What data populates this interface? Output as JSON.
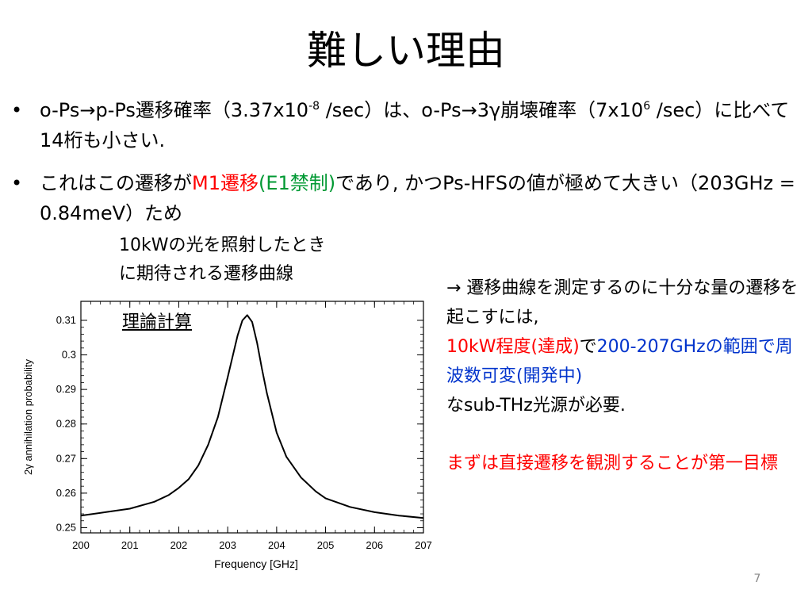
{
  "title": "難しい理由",
  "bullets": [
    {
      "t1": "o-Ps→p-Ps遷移確率（3.37x10",
      "sup1": "-8",
      "t2": " /sec）は、o-Ps→3γ崩壊確率（7x10",
      "sup2": "6",
      "t3": " /sec）に比べて14桁も小さい."
    },
    {
      "t1": "これはこの遷移が",
      "red": "M1遷移",
      "green": "(E1禁制)",
      "t2": "であり, かつPs-HFSの値が極めて大きい（203GHz = 0.84meV）ため"
    }
  ],
  "caption": [
    "10kWの光を照射したとき",
    "に期待される遷移曲線"
  ],
  "theory_label": "理論計算",
  "right_text": {
    "l1": "→ 遷移曲線を測定するのに十分な量の遷移を起こすには,",
    "red1": "10kW程度(達成)",
    "de": "で",
    "blue1": "200-207GHzの範囲で周波数可変(開発中)",
    "l3": "なsub-THz光源が必要.",
    "goal": "まずは直接遷移を観測することが第一目標"
  },
  "page_number": "7",
  "chart_data": {
    "type": "line",
    "xlabel": "Frequency [GHz]",
    "ylabel": "2γ annihilation probability",
    "xlim": [
      200,
      207
    ],
    "ylim": [
      0.2485,
      0.3155
    ],
    "xticks": [
      200,
      201,
      202,
      203,
      204,
      205,
      206,
      207
    ],
    "yticks": [
      0.25,
      0.26,
      0.27,
      0.28,
      0.29,
      0.3,
      0.31
    ],
    "ytick_labels": [
      "0.25",
      "0.26",
      "0.27",
      "0.28",
      "0.29",
      "0.3",
      "0.31"
    ],
    "grid": false,
    "series": [
      {
        "x": [
          200,
          200.5,
          201,
          201.5,
          201.8,
          202,
          202.2,
          202.4,
          202.6,
          202.8,
          203,
          203.1,
          203.2,
          203.3,
          203.4,
          203.5,
          203.6,
          203.7,
          203.8,
          204,
          204.2,
          204.5,
          204.8,
          205,
          205.5,
          206,
          206.5,
          207
        ],
        "y": [
          0.2535,
          0.2545,
          0.2555,
          0.2575,
          0.2595,
          0.2615,
          0.264,
          0.268,
          0.274,
          0.282,
          0.2935,
          0.2995,
          0.3055,
          0.31,
          0.3115,
          0.3095,
          0.3035,
          0.296,
          0.289,
          0.2775,
          0.2705,
          0.2645,
          0.2605,
          0.2585,
          0.256,
          0.2545,
          0.2535,
          0.2528
        ],
        "color": "#000000"
      }
    ]
  }
}
